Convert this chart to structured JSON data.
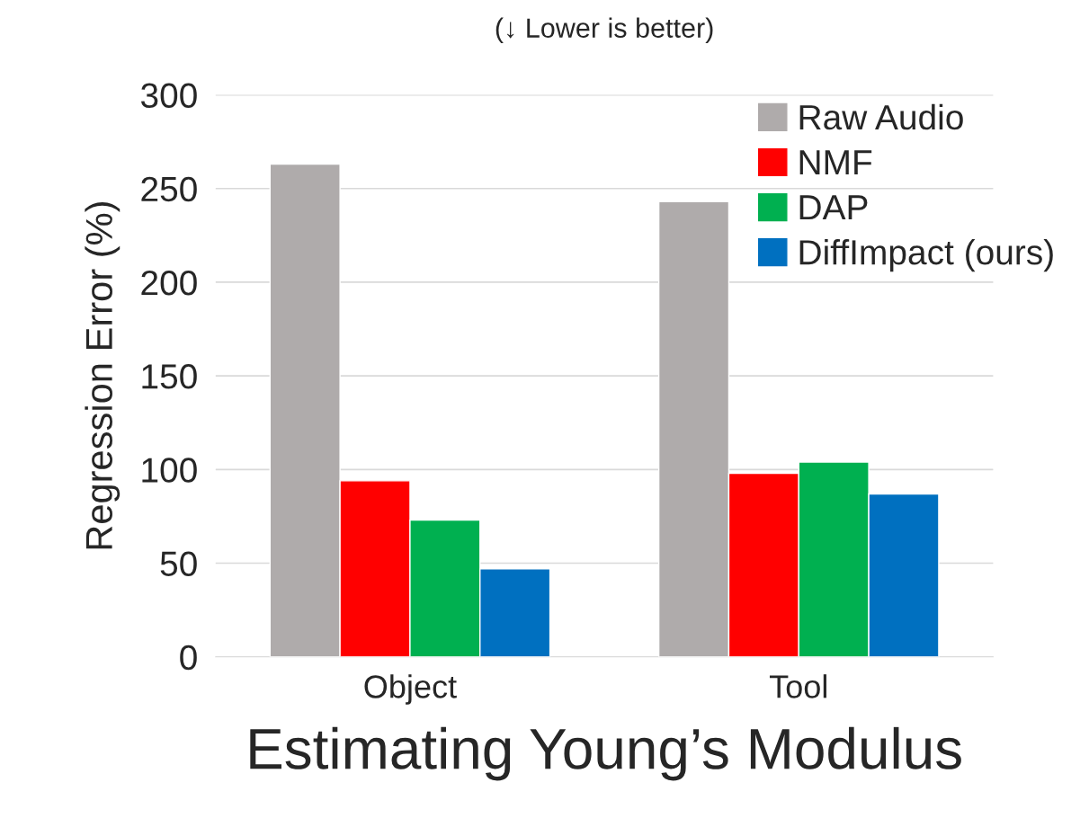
{
  "chart_data": {
    "type": "bar",
    "title": "(↓ Lower is better)",
    "xlabel": "Estimating Young’s Modulus",
    "ylabel": "Regression Error (%)",
    "categories": [
      "Object",
      "Tool"
    ],
    "series": [
      {
        "name": "Raw Audio",
        "color": "#afabab",
        "values": [
          263,
          243
        ]
      },
      {
        "name": "NMF",
        "color": "#ff0000",
        "values": [
          94,
          98
        ]
      },
      {
        "name": "DAP",
        "color": "#00b050",
        "values": [
          73,
          104
        ]
      },
      {
        "name": "DiffImpact (ours)",
        "color": "#0070c0",
        "values": [
          47,
          87
        ]
      }
    ],
    "ylim": [
      0,
      300
    ],
    "yticks": [
      0,
      50,
      100,
      150,
      200,
      250,
      300
    ],
    "grid": "y",
    "legend": "top right"
  }
}
